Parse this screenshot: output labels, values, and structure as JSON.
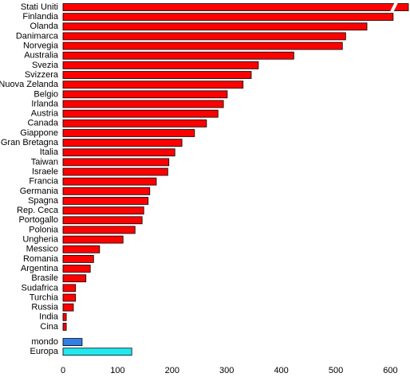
{
  "chart_data": {
    "type": "bar",
    "orientation": "horizontal",
    "categories": [
      "Stati Uniti",
      "Finlandia",
      "Olanda",
      "Danimarca",
      "Norvegia",
      "Australia",
      "Svezia",
      "Svizzera",
      "Nuova Zelanda",
      "Belgio",
      "Irlanda",
      "Austria",
      "Canada",
      "Giappone",
      "Gran Bretagna",
      "Italia",
      "Taiwan",
      "Israele",
      "Francia",
      "Germania",
      "Spagna",
      "Rep. Ceca",
      "Portogallo",
      "Polonia",
      "Ungheria",
      "Messico",
      "Romania",
      "Argentina",
      "Brasile",
      "Sudafrica",
      "Turchia",
      "Russia",
      "India",
      "Cina",
      "mondo",
      "Europa"
    ],
    "values": [
      633,
      605,
      557,
      518,
      512,
      423,
      358,
      345,
      330,
      301,
      294,
      284,
      263,
      241,
      218,
      205,
      194,
      192,
      171,
      159,
      156,
      148,
      145,
      132,
      110,
      67,
      56,
      50,
      42,
      23,
      23,
      19,
      6,
      6,
      35,
      126
    ],
    "colors": [
      "#ff0000",
      "#ff0000",
      "#ff0000",
      "#ff0000",
      "#ff0000",
      "#ff0000",
      "#ff0000",
      "#ff0000",
      "#ff0000",
      "#ff0000",
      "#ff0000",
      "#ff0000",
      "#ff0000",
      "#ff0000",
      "#ff0000",
      "#ff0000",
      "#ff0000",
      "#ff0000",
      "#ff0000",
      "#ff0000",
      "#ff0000",
      "#ff0000",
      "#ff0000",
      "#ff0000",
      "#ff0000",
      "#ff0000",
      "#ff0000",
      "#ff0000",
      "#ff0000",
      "#ff0000",
      "#ff0000",
      "#ff0000",
      "#ff0000",
      "#ff0000",
      "#2f7fe8",
      "#22e8f0"
    ],
    "xlim": [
      0,
      633
    ],
    "xticks": [
      0,
      100,
      200,
      300,
      400,
      500,
      600
    ]
  }
}
